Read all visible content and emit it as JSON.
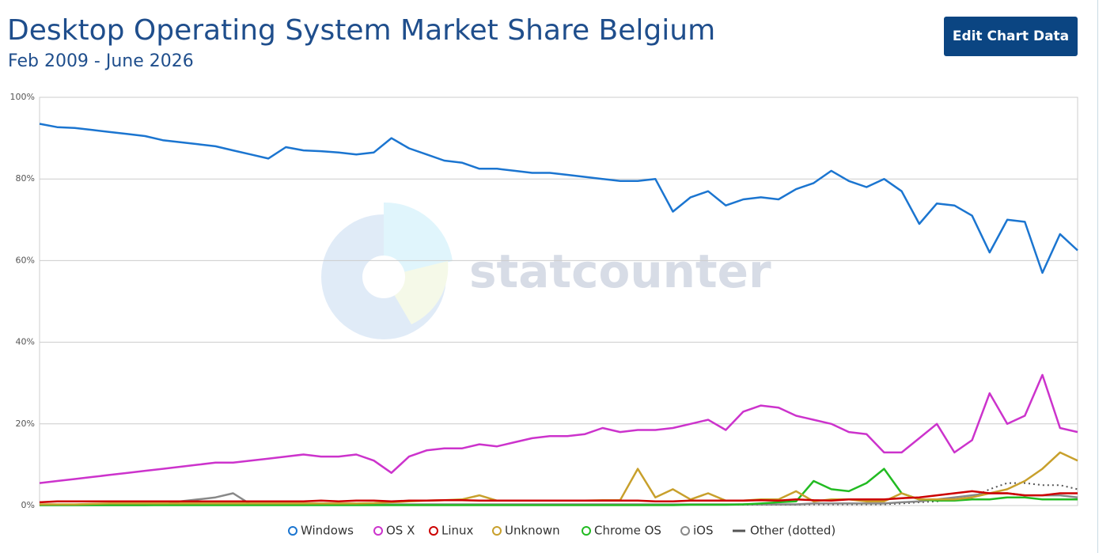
{
  "header": {
    "title": "Desktop Operating System Market Share Belgium",
    "subtitle": "Feb 2009 - June 2026",
    "button": "Edit Chart Data"
  },
  "chart_data": {
    "type": "line",
    "watermark": "statcounter",
    "ylim": [
      0,
      100
    ],
    "yticks": [
      {
        "value": 0,
        "label": "0%"
      },
      {
        "value": 20,
        "label": "20%"
      },
      {
        "value": 40,
        "label": "40%"
      },
      {
        "value": 60,
        "label": "60%"
      },
      {
        "value": 80,
        "label": "80%"
      },
      {
        "value": 100,
        "label": "100%"
      }
    ],
    "grid": true,
    "legend": "bottom",
    "series": [
      {
        "name": "Windows",
        "color": "#1b75d0",
        "values": [
          93.5,
          92.7,
          92.5,
          92,
          91.5,
          91,
          90.5,
          89.5,
          89,
          88.5,
          88,
          87,
          86,
          85,
          87.8,
          87,
          86.8,
          86.5,
          86,
          86.5,
          90,
          87.5,
          86,
          84.5,
          84,
          82.5,
          82.5,
          82,
          81.5,
          81.5,
          81,
          80.5,
          80,
          79.5,
          79.5,
          80,
          72,
          75.5,
          77,
          73.5,
          75,
          75.5,
          75,
          77.5,
          79,
          82,
          79.5,
          78,
          80,
          77,
          69,
          74,
          73.5,
          71,
          62,
          70,
          69.5,
          57,
          66.5,
          62.5
        ]
      },
      {
        "name": "OS X",
        "color": "#cc33cc",
        "values": [
          5.5,
          6,
          6.5,
          7,
          7.5,
          8,
          8.5,
          9,
          9.5,
          10,
          10.5,
          10.5,
          11,
          11.5,
          12,
          12.5,
          12,
          12,
          12.5,
          11,
          8,
          12,
          13.5,
          14,
          14,
          15,
          14.5,
          15.5,
          16.5,
          17,
          17,
          17.5,
          19,
          18,
          18.5,
          18.5,
          19,
          20,
          21,
          18.5,
          23,
          24.5,
          24,
          22,
          21,
          20,
          18,
          17.5,
          13,
          13,
          16.5,
          20,
          13,
          16,
          27.5,
          20,
          22,
          32,
          19,
          18
        ]
      },
      {
        "name": "Linux",
        "color": "#cc0000",
        "values": [
          0.8,
          1,
          1,
          1,
          1,
          1,
          1,
          1,
          1,
          1,
          1,
          1,
          1,
          1,
          1,
          1,
          1.2,
          1,
          1.2,
          1.2,
          1,
          1.2,
          1.2,
          1.3,
          1.3,
          1.2,
          1.2,
          1.2,
          1.2,
          1.2,
          1.2,
          1.2,
          1.2,
          1.2,
          1.2,
          1,
          1,
          1.2,
          1.2,
          1.2,
          1.2,
          1.3,
          1.2,
          1.5,
          1.3,
          1.2,
          1.5,
          1.5,
          1.5,
          1.8,
          2,
          2.5,
          3,
          3.5,
          3,
          3,
          2.5,
          2.5,
          3,
          3
        ]
      },
      {
        "name": "Unknown",
        "color": "#c8a02c",
        "values": [
          0.3,
          0.3,
          0.3,
          0.4,
          0.5,
          0.5,
          0.5,
          0.5,
          0.5,
          0.5,
          0.5,
          0.5,
          0.5,
          0.5,
          0.5,
          0.5,
          0.5,
          0.5,
          0.5,
          0.6,
          0.8,
          1,
          1.2,
          1.3,
          1.5,
          2.5,
          1.2,
          1.2,
          1.2,
          1.2,
          1.2,
          1.2,
          1.3,
          1.3,
          9,
          2,
          4,
          1.5,
          3,
          1.2,
          1.2,
          1.5,
          1.5,
          3.5,
          1,
          1.5,
          1.5,
          1,
          1,
          3,
          1.5,
          1.5,
          1.5,
          2,
          3,
          4,
          6,
          9,
          13,
          11
        ]
      },
      {
        "name": "Chrome OS",
        "color": "#22bb22",
        "values": [
          0.1,
          0.1,
          0.1,
          0.1,
          0.1,
          0.1,
          0.1,
          0.1,
          0.1,
          0.1,
          0.1,
          0.1,
          0.1,
          0.1,
          0.1,
          0.1,
          0.1,
          0.1,
          0.1,
          0.1,
          0.1,
          0.1,
          0.1,
          0.1,
          0.1,
          0.1,
          0.1,
          0.1,
          0.1,
          0.1,
          0.1,
          0.1,
          0.1,
          0.1,
          0.1,
          0.1,
          0.1,
          0.2,
          0.2,
          0.2,
          0.3,
          0.5,
          0.8,
          1,
          6,
          4,
          3.5,
          5.5,
          9,
          3,
          1.5,
          1.2,
          1.2,
          1.5,
          1.5,
          2,
          2,
          1.5,
          1.5,
          1.5
        ]
      },
      {
        "name": "iOS",
        "color": "#888888",
        "values": [
          0.1,
          0.1,
          0.1,
          0.1,
          0.1,
          0.1,
          0.1,
          0.2,
          1,
          1.5,
          2,
          3,
          0.3,
          0.3,
          0.3,
          0.3,
          0.3,
          0.3,
          0.3,
          0.3,
          0.3,
          0.3,
          0.3,
          0.3,
          0.3,
          0.3,
          0.3,
          0.3,
          0.3,
          0.3,
          0.3,
          0.3,
          0.3,
          0.3,
          0.3,
          0.3,
          0.3,
          0.3,
          0.3,
          0.3,
          0.3,
          0.3,
          0.3,
          0.3,
          0.5,
          0.5,
          0.5,
          0.5,
          0.5,
          0.8,
          1,
          1.5,
          2,
          2.5,
          3,
          3,
          2.5,
          2.5,
          2.5,
          2
        ]
      },
      {
        "name": "Other (dotted)",
        "color": "#555555",
        "style": "dotted",
        "values": [
          0.2,
          0.2,
          0.2,
          0.2,
          0.2,
          0.2,
          0.2,
          0.2,
          0.2,
          0.2,
          0.2,
          0.2,
          0.2,
          0.2,
          0.2,
          0.2,
          0.2,
          0.2,
          0.2,
          0.2,
          0.2,
          0.2,
          0.2,
          0.2,
          0.2,
          0.2,
          0.2,
          0.2,
          0.2,
          0.2,
          0.2,
          0.2,
          0.2,
          0.2,
          0.2,
          0.2,
          0.2,
          0.2,
          0.2,
          0.2,
          0.2,
          0.2,
          0.2,
          0.2,
          0.3,
          0.3,
          0.3,
          0.3,
          0.3,
          0.5,
          0.8,
          1,
          1.5,
          2,
          4,
          5.5,
          5.5,
          5,
          5,
          4
        ]
      }
    ]
  }
}
